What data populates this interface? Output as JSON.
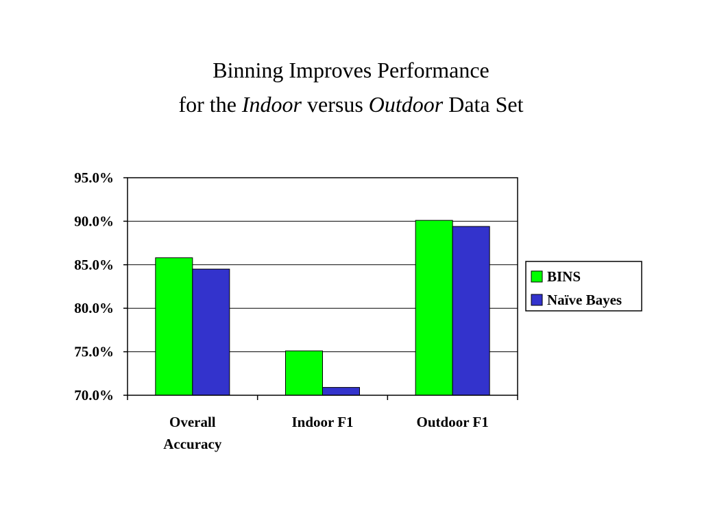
{
  "title": {
    "line1": "Binning Improves Performance",
    "line2_pre": "for the ",
    "line2_em1": "Indoor",
    "line2_mid": " versus ",
    "line2_em2": "Outdoor",
    "line2_post": " Data Set"
  },
  "chart_data": {
    "type": "bar",
    "categories": [
      [
        "Overall",
        "Accuracy"
      ],
      [
        "Indoor F1"
      ],
      [
        "Outdoor F1"
      ]
    ],
    "series": [
      {
        "name": "BINS",
        "color": "#00ff00",
        "values": [
          85.8,
          75.1,
          90.1
        ]
      },
      {
        "name": "Naïve Bayes",
        "color": "#3333cc",
        "values": [
          84.5,
          70.9,
          89.4
        ]
      }
    ],
    "ylim": [
      70.0,
      95.0
    ],
    "yticks": [
      "95.0%",
      "90.0%",
      "85.0%",
      "80.0%",
      "75.0%",
      "70.0%"
    ],
    "ytick_values": [
      95,
      90,
      85,
      80,
      75,
      70
    ],
    "grid": true,
    "legend": "right"
  }
}
